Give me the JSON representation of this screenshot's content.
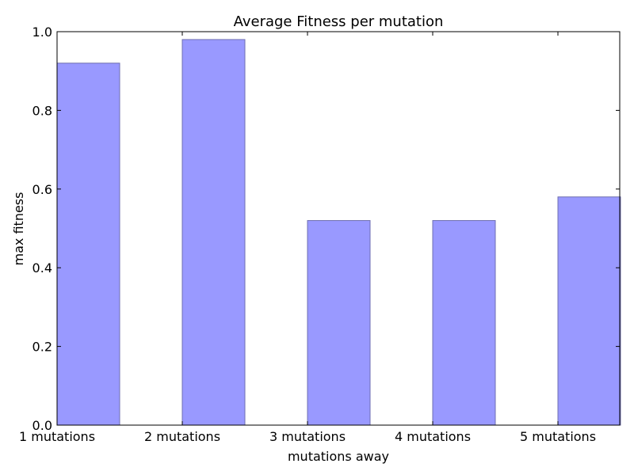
{
  "chart_data": {
    "type": "bar",
    "title": "Average Fitness per mutation",
    "xlabel": "mutations away",
    "ylabel": "max fitness",
    "categories": [
      "1 mutations",
      "2 mutations",
      "3 mutations",
      "4 mutations",
      "5 mutations"
    ],
    "values": [
      0.92,
      0.98,
      0.52,
      0.52,
      0.58
    ],
    "ylim": [
      0,
      1.0
    ],
    "yticks": [
      "0.0",
      "0.2",
      "0.4",
      "0.6",
      "0.8",
      "1.0"
    ],
    "grid": false,
    "colors": {
      "bar_fill": "#9999ff",
      "bar_edge": "#6f6fb0",
      "axis": "#000000"
    }
  }
}
